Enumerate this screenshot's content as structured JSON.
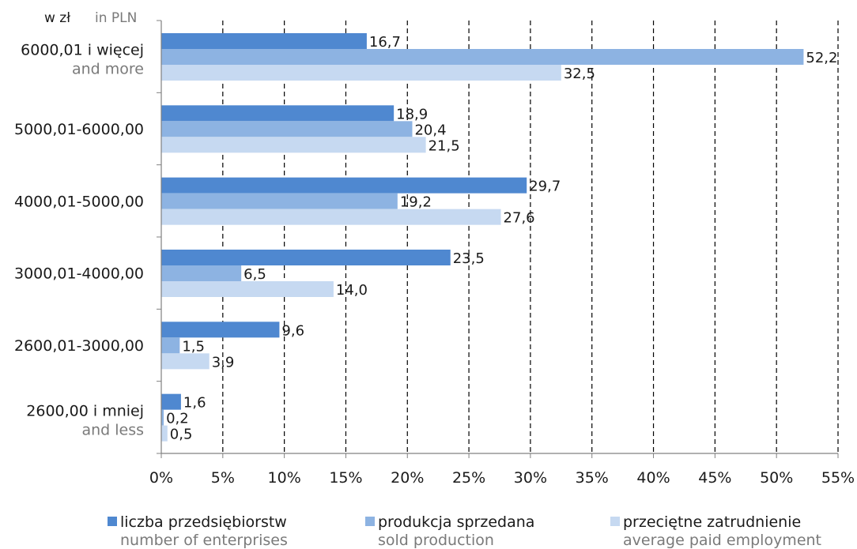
{
  "chart_data": {
    "type": "bar",
    "orientation": "horizontal",
    "unit_pl": "w zł",
    "unit_en": "in PLN",
    "xlim": [
      0,
      55
    ],
    "xticks": [
      "0%",
      "5%",
      "10%",
      "15%",
      "20%",
      "25%",
      "30%",
      "35%",
      "40%",
      "45%",
      "50%",
      "55%"
    ],
    "grid": "vertical dashed",
    "legend_position": "bottom",
    "categories": [
      {
        "pl": "6000,01 i więcej",
        "en": "and more"
      },
      {
        "pl": "5000,01-6000,00",
        "en": ""
      },
      {
        "pl": "4000,01-5000,00",
        "en": ""
      },
      {
        "pl": "3000,01-4000,00",
        "en": ""
      },
      {
        "pl": "2600,01-3000,00",
        "en": ""
      },
      {
        "pl": "2600,00 i mniej",
        "en": "and less"
      }
    ],
    "series": [
      {
        "name_pl": "liczba przedsiębiorstw",
        "name_en": "number of enterprises",
        "color": "#4f88d0",
        "values": [
          16.7,
          18.9,
          29.7,
          23.5,
          9.6,
          1.6
        ],
        "labels": [
          "16,7",
          "18,9",
          "29,7",
          "23,5",
          "9,6",
          "1,6"
        ]
      },
      {
        "name_pl": "produkcja sprzedana",
        "name_en": "sold production",
        "color": "#8db3e2",
        "values": [
          52.2,
          20.4,
          19.2,
          6.5,
          1.5,
          0.2
        ],
        "labels": [
          "52,2",
          "20,4",
          "19,2",
          "6,5",
          "1,5",
          "0,2"
        ]
      },
      {
        "name_pl": "przeciętne zatrudnienie",
        "name_en": "average paid employment",
        "color": "#c6d9f1",
        "values": [
          32.5,
          21.5,
          27.6,
          14.0,
          3.9,
          0.5
        ],
        "labels": [
          "32,5",
          "21,5",
          "27,6",
          "14,0",
          "3,9",
          "0,5"
        ]
      }
    ]
  }
}
